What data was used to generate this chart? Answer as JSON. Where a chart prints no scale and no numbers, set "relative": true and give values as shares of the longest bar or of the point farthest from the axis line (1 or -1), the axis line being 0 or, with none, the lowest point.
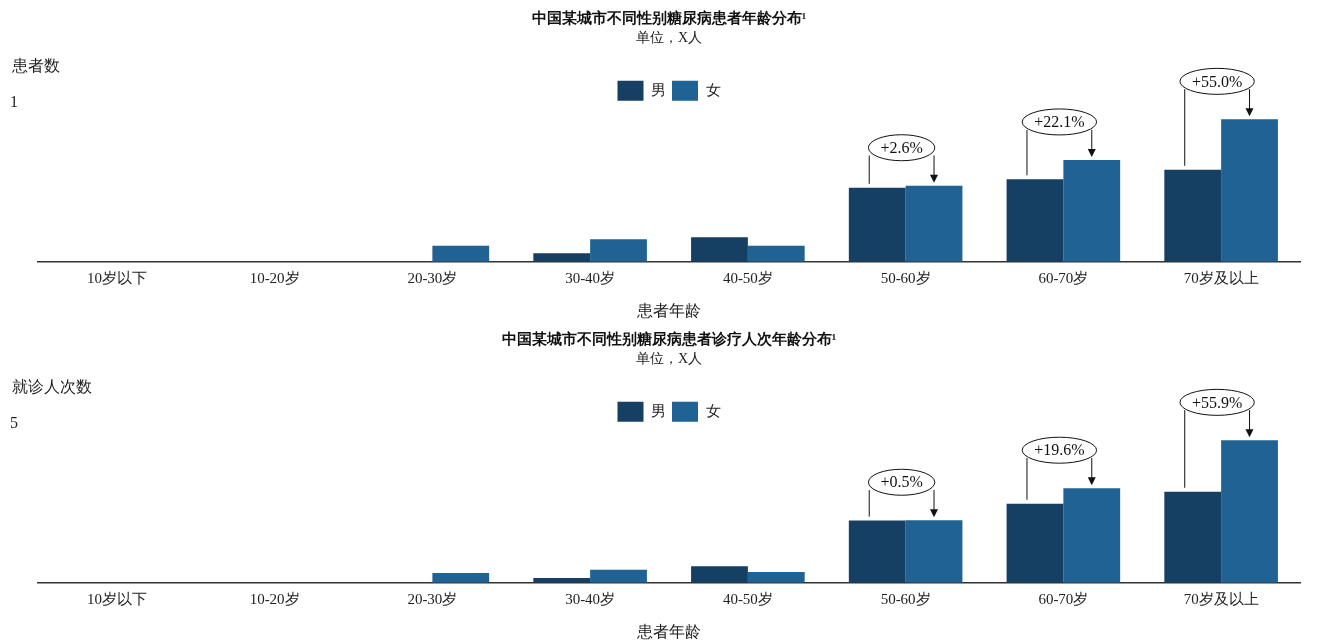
{
  "chart_data": [
    {
      "type": "bar",
      "title": "中国某城市不同性别糖尿病患者年龄分布¹",
      "subtitle": "单位，X人",
      "xlabel": "患者年龄",
      "ylabel": "患者数",
      "relative": true,
      "grid": false,
      "legend": "top",
      "categories": [
        "10岁以下",
        "10-20岁",
        "20-30岁",
        "30-40岁",
        "40-50岁",
        "50-60岁",
        "60-70岁",
        "70岁及以上"
      ],
      "series": [
        {
          "name": "男",
          "color": "#153f63",
          "values": [
            0,
            0,
            null,
            0.06,
            0.173,
            0.519,
            0.579,
            0.646
          ]
        },
        {
          "name": "女",
          "color": "#1f6293",
          "values": [
            0,
            null,
            0.113,
            0.158,
            0.113,
            0.534,
            0.715,
            1
          ]
        }
      ],
      "annotations": [
        "1",
        "+2.6%",
        "+22.1%",
        "+55.0%"
      ]
    },
    {
      "type": "bar",
      "title": "中国某城市不同性别糖尿病患者诊疗人次年龄分布¹",
      "subtitle": "单位，X人",
      "xlabel": "患者年龄",
      "ylabel": "就诊人次数",
      "relative": true,
      "grid": false,
      "legend": "top",
      "categories": [
        "10岁以下",
        "10-20岁",
        "20-30岁",
        "30-40岁",
        "40-50岁",
        "50-60岁",
        "60-70岁",
        "70岁及以上"
      ],
      "series": [
        {
          "name": "男",
          "color": "#153f63",
          "values": [
            0,
            0,
            null,
            0.034,
            0.117,
            0.437,
            0.555,
            0.639
          ]
        },
        {
          "name": "女",
          "color": "#1f6293",
          "values": [
            0,
            null,
            0.068,
            0.092,
            0.076,
            0.439,
            0.664,
            1
          ]
        }
      ],
      "annotations": [
        "5",
        "+0.5%",
        "+19.6%",
        "+55.9%"
      ]
    }
  ]
}
